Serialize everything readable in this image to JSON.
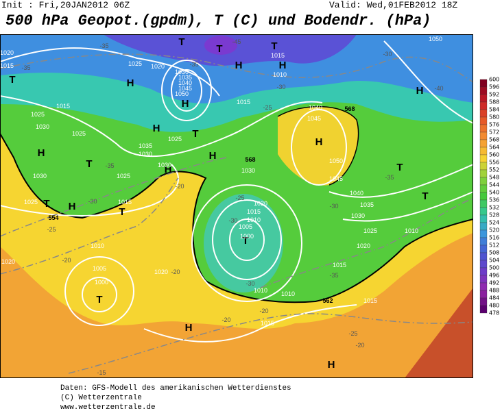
{
  "header": {
    "init": "Init : Fri,20JAN2012 06Z",
    "valid": "Valid: Wed,01FEB2012 18Z",
    "title": "500 hPa Geopot.(gpdm), T (C) und Bodendr. (hPa)"
  },
  "map": {
    "labels": [
      "T",
      "T",
      "T",
      "H",
      "H",
      "H",
      "H",
      "H",
      "T",
      "H",
      "H",
      "T",
      "H",
      "H",
      "H",
      "T",
      "T",
      "T",
      "T",
      "H",
      "H",
      "T",
      "H",
      "T",
      "T",
      "1025",
      "1020",
      "1030",
      "1035",
      "1040",
      "1045",
      "1050",
      "1015",
      "1010",
      "1015",
      "1040",
      "1045",
      "568",
      "1025",
      "1030",
      "1025",
      "1015",
      "1035",
      "1030",
      "1025",
      "1025",
      "1030",
      "568",
      "1030",
      "1020",
      "1015",
      "1010",
      "1005",
      "1000",
      "1050",
      "1045",
      "1040",
      "1035",
      "1030",
      "1025",
      "1020",
      "1015",
      "1015",
      "1010",
      "1010",
      "1010",
      "1030",
      "1025",
      "1015",
      "1010",
      "1005",
      "1000",
      "1020",
      "1020",
      "1015",
      "562",
      "554",
      "1050",
      "1020",
      "1015",
      "-35",
      "-35",
      "-45",
      "-35",
      "-30",
      "-25",
      "-35",
      "-30",
      "-25",
      "-20",
      "-20",
      "-20",
      "-20",
      "-20",
      "-30",
      "-25",
      "-30",
      "-35",
      "-30",
      "-35",
      "-30",
      "-40",
      "-25",
      "-20",
      "-15"
    ]
  },
  "colorbar": [
    600,
    596,
    592,
    588,
    584,
    580,
    576,
    572,
    568,
    564,
    560,
    556,
    552,
    548,
    544,
    540,
    536,
    532,
    528,
    524,
    520,
    516,
    512,
    508,
    504,
    500,
    496,
    492,
    488,
    484,
    480,
    478
  ],
  "footer": [
    "Daten: GFS-Modell des amerikanischen Wetterdienstes",
    "(C) Wetterzentrale",
    "www.wetterzentrale.de"
  ]
}
